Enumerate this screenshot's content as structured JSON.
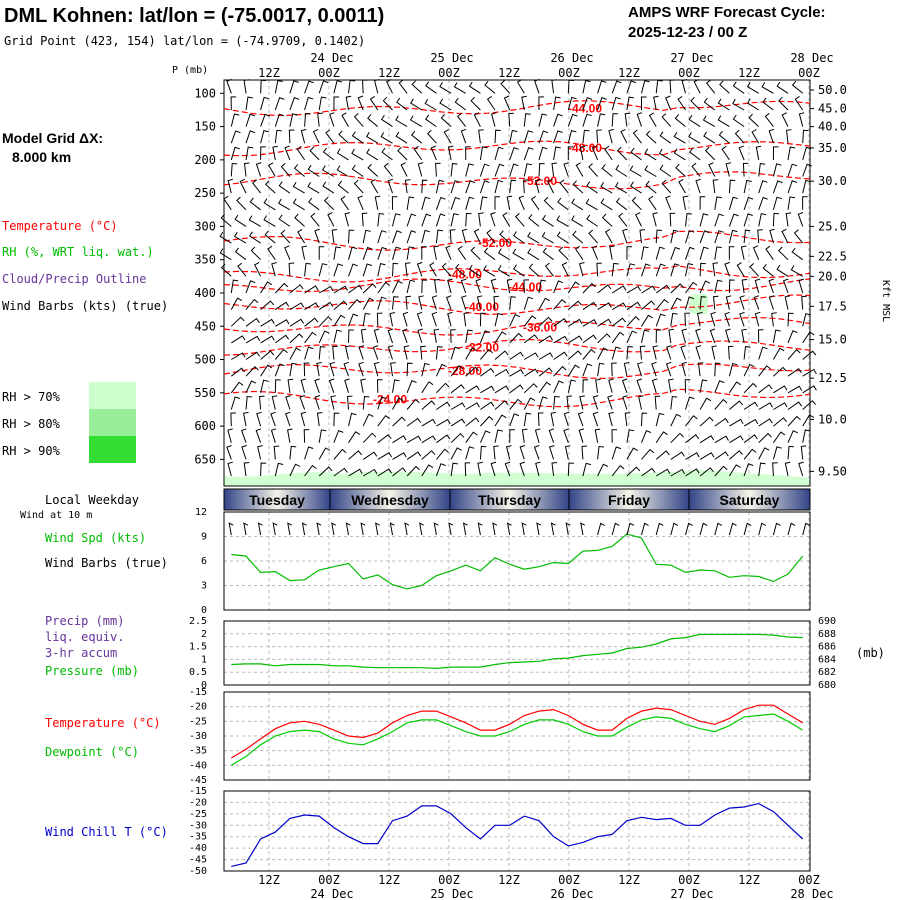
{
  "header": {
    "title": "DML Kohnen:  lat/lon = (-75.0017, 0.0011)",
    "gridpoint": "Grid Point (423, 154) lat/lon = (-74.9709, 0.1402)",
    "forecast_title": "AMPS WRF Forecast Cycle:",
    "forecast_cycle": "2025-12-23 / 00  Z"
  },
  "left_panel": {
    "grid_label": "Model Grid ΔX:",
    "grid_value": "8.000 km",
    "legend_temp": "Temperature (°C)",
    "legend_rh": "RH (%, WRT liq. wat.)",
    "legend_cloud": "Cloud/Precip Outline",
    "legend_wind": "Wind Barbs (kts) (true)",
    "rh70": "RH > 70%",
    "rh80": "RH > 80%",
    "rh90": "RH > 90%",
    "local_weekday": "Local Weekday",
    "wind_at": "Wind at 10 m",
    "wind_spd": "Wind Spd (kts)",
    "wind_barbs": "Wind Barbs (true)",
    "precip1": "Precip (mm)",
    "precip2": "liq. equiv.",
    "precip3": "3-hr accum",
    "pressure": "Pressure (mb)",
    "temperature": "Temperature (°C)",
    "dewpoint": "Dewpoint (°C)",
    "windchill": "Wind Chill T (°C)"
  },
  "colors": {
    "temp": "#ff0000",
    "rh": "#00cc00",
    "cloud": "#663399",
    "wind": "#000000",
    "windchill": "#0000cc",
    "rh70": "#ccffcc",
    "rh80": "#99ee99",
    "rh90": "#33dd33"
  },
  "time_axis": {
    "top_hours": [
      "12Z",
      "00Z",
      "12Z",
      "00Z",
      "12Z",
      "00Z",
      "12Z",
      "00Z",
      "12Z",
      "00Z"
    ],
    "top_dates": [
      "24 Dec",
      "25 Dec",
      "26 Dec",
      "27 Dec",
      "28 Dec"
    ],
    "bottom_hours": [
      "12Z",
      "00Z",
      "12Z",
      "00Z",
      "12Z",
      "00Z",
      "12Z",
      "00Z",
      "12Z",
      "00Z"
    ],
    "bottom_dates": [
      "24 Dec",
      "25 Dec",
      "26 Dec",
      "27 Dec",
      "28 Dec"
    ],
    "days": [
      "Tuesday",
      "Wednesday",
      "Thursday",
      "Friday",
      "Saturday"
    ]
  },
  "chart_data": [
    {
      "type": "heatmap",
      "title": "Vertical cross-section (temperature, RH, wind barbs)",
      "ylabel": "P (mb)",
      "ylabel_right": "Kft MSL",
      "p_ticks": [
        "100",
        "150",
        "200",
        "250",
        "300",
        "350",
        "400",
        "450",
        "500",
        "550",
        "600",
        "650"
      ],
      "kft_ticks": [
        "50.0",
        "45.0",
        "40.0",
        "35.0",
        "30.0",
        "25.0",
        "22.5",
        "20.0",
        "17.5",
        "15.0",
        "12.5",
        "10.0",
        "9.50"
      ],
      "temp_contours": [
        {
          "label": "-44.00",
          "pressure": 123
        },
        {
          "label": "-48.00",
          "pressure": 182
        },
        {
          "label": "-52.00",
          "pressure": 232
        },
        {
          "label": "-52.00",
          "pressure": 325
        },
        {
          "label": "-48.00",
          "pressure": 372
        },
        {
          "label": "-44.00",
          "pressure": 391
        },
        {
          "label": "-40.00",
          "pressure": 421
        },
        {
          "label": "-36.00",
          "pressure": 452
        },
        {
          "label": "-32.00",
          "pressure": 482
        },
        {
          "label": "-28.00",
          "pressure": 517
        },
        {
          "label": "-24.00",
          "pressure": 560
        }
      ]
    },
    {
      "type": "line",
      "title": "Wind Spd (kts)",
      "ylim": [
        0,
        12
      ],
      "y_ticks": [
        "12",
        "9",
        "6",
        "3",
        "0"
      ],
      "values": [
        6.8,
        6.6,
        4.6,
        4.7,
        3.6,
        3.7,
        4.9,
        5.3,
        5.7,
        3.8,
        4.3,
        3.1,
        2.6,
        3.0,
        4.2,
        4.8,
        5.5,
        4.8,
        6.4,
        5.6,
        5.0,
        5.3,
        5.8,
        5.7,
        7.2,
        7.3,
        7.8,
        9.3,
        8.8,
        5.6,
        5.5,
        4.6,
        4.9,
        4.8,
        4.0,
        4.2,
        4.1,
        3.5,
        4.4,
        6.6
      ]
    },
    {
      "type": "line",
      "title": "Pressure (mb) / Precip (mm)",
      "ylim_left": [
        0,
        2.5
      ],
      "ylim_right": [
        680,
        690
      ],
      "y_ticks_left": [
        "2.5",
        "2",
        "1.5",
        "1",
        "0.5",
        "0"
      ],
      "y_ticks_right": [
        "690",
        "688",
        "686",
        "684",
        "682",
        "680"
      ],
      "right_unit": "(mb)",
      "pressure": [
        683.2,
        683.3,
        683.3,
        683.0,
        683.2,
        683.2,
        683.2,
        683.0,
        683.0,
        682.8,
        682.7,
        682.7,
        682.7,
        682.7,
        682.6,
        682.8,
        682.8,
        682.8,
        683.2,
        683.5,
        683.6,
        683.7,
        684.1,
        684.2,
        684.6,
        684.8,
        685.0,
        685.7,
        685.9,
        686.4,
        687.2,
        687.4,
        687.9,
        687.9,
        687.9,
        687.9,
        687.9,
        687.8,
        687.5,
        687.4
      ],
      "precip": []
    },
    {
      "type": "line",
      "title": "Temperature / Dewpoint (°C)",
      "ylim": [
        -45,
        -15
      ],
      "y_ticks": [
        "-15",
        "-20",
        "-25",
        "-30",
        "-35",
        "-40",
        "-45"
      ],
      "series": [
        {
          "name": "Temperature (°C)",
          "values": [
            -37.5,
            -34.5,
            -31,
            -27.5,
            -25.5,
            -25,
            -26,
            -28,
            -30,
            -30.5,
            -29,
            -25.5,
            -23,
            -21.5,
            -21.5,
            -23.5,
            -25.5,
            -28,
            -28,
            -26,
            -23,
            -21.5,
            -21,
            -23,
            -26,
            -28,
            -28,
            -24,
            -21.5,
            -20.5,
            -21,
            -23,
            -25,
            -26,
            -24,
            -21,
            -19.5,
            -19.5,
            -22.5,
            -25.5
          ]
        },
        {
          "name": "Dewpoint (°C)",
          "values": [
            -40,
            -37,
            -33,
            -30,
            -28.5,
            -28,
            -28.5,
            -31,
            -32.5,
            -33,
            -31,
            -28.5,
            -25.5,
            -24.5,
            -24.5,
            -26.5,
            -28.5,
            -30,
            -30,
            -28.5,
            -26,
            -24.5,
            -24.5,
            -26,
            -28.5,
            -30,
            -30,
            -27,
            -24.5,
            -23.5,
            -24,
            -26,
            -27.5,
            -28.5,
            -26.5,
            -23.5,
            -23,
            -22.5,
            -25,
            -28
          ]
        }
      ]
    },
    {
      "type": "line",
      "title": "Wind Chill T (°C)",
      "ylim": [
        -50,
        -15
      ],
      "y_ticks": [
        "-15",
        "-20",
        "-25",
        "-30",
        "-35",
        "-40",
        "-45",
        "-50"
      ],
      "values": [
        -48,
        -46.5,
        -36,
        -33,
        -27,
        -25.5,
        -26,
        -31,
        -35,
        -38,
        -38,
        -28,
        -26,
        -21.5,
        -21.5,
        -25,
        -31,
        -36,
        -30,
        -30,
        -26,
        -28,
        -35,
        -39,
        -37.5,
        -35,
        -34,
        -28,
        -26.5,
        -27.5,
        -27,
        -30,
        -30,
        -25.5,
        -22.5,
        -22,
        -20.5,
        -24,
        -30,
        -36
      ]
    }
  ]
}
